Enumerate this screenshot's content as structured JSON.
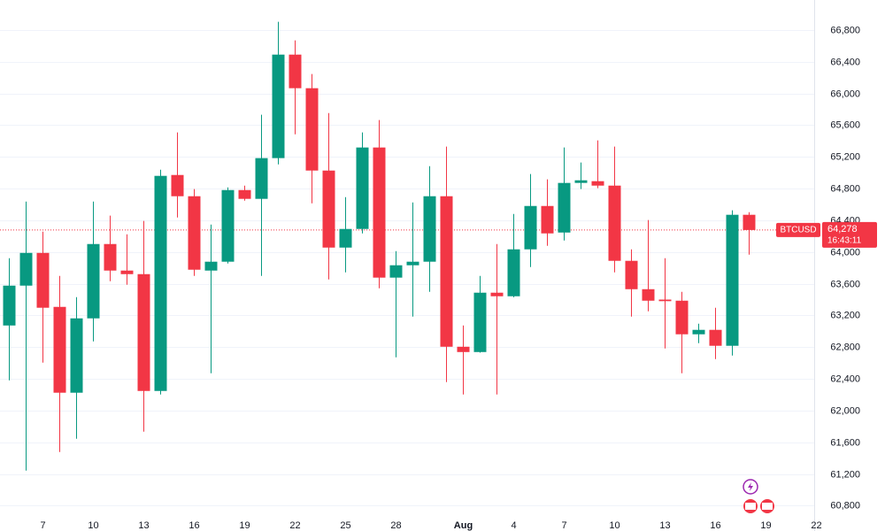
{
  "chart_data": {
    "type": "candlestick",
    "symbol": "BTCUSD",
    "last_value_label": "64,278",
    "countdown": "16:43:11",
    "categories": [
      null,
      null,
      "7",
      null,
      null,
      "10",
      null,
      null,
      "13",
      null,
      null,
      "16",
      null,
      null,
      "19",
      null,
      null,
      "22",
      null,
      null,
      "25",
      null,
      null,
      "28",
      null,
      null,
      null,
      "Aug",
      null,
      null,
      "4",
      null,
      null,
      "7",
      null,
      null,
      "10",
      null,
      null,
      "13",
      null,
      null,
      "16",
      null,
      null,
      "19",
      null,
      null,
      "22"
    ],
    "open": [
      63073,
      63576,
      63989,
      63308,
      62225,
      63163,
      64101,
      63766,
      63721,
      62247,
      64972,
      64704,
      63766,
      63878,
      64782,
      64671,
      65185,
      66491,
      66067,
      65028,
      64056,
      64291,
      65319,
      63677,
      63833,
      63878,
      64704,
      62805,
      62738,
      63487,
      63442,
      64034,
      64581,
      64246,
      64872,
      64894,
      64838,
      63889,
      63531,
      63400,
      63386,
      62962,
      63018,
      62817,
      64470,
      null,
      null,
      null,
      null
    ],
    "high": [
      63922,
      64637,
      64257,
      63699,
      63431,
      64637,
      64459,
      64224,
      64392,
      65039,
      65509,
      64794,
      64347,
      64816,
      64838,
      65732,
      66905,
      66670,
      66246,
      65754,
      64693,
      65509,
      65665,
      64012,
      64626,
      65084,
      65330,
      63073,
      63699,
      64101,
      64481,
      64984,
      64917,
      65319,
      65129,
      65408,
      65330,
      64034,
      64403,
      63922,
      63498,
      63096,
      63297,
      64526,
      64503,
      null,
      null,
      null,
      null
    ],
    "low": [
      62381,
      61242,
      62604,
      61476,
      61644,
      62872,
      63632,
      63587,
      61733,
      62202,
      64436,
      63699,
      62470,
      63855,
      64648,
      63699,
      65106,
      65486,
      64615,
      63654,
      63744,
      64235,
      63543,
      62671,
      63185,
      63498,
      62359,
      62202,
      62730,
      62202,
      63430,
      63811,
      64079,
      64146,
      64794,
      64805,
      63744,
      63185,
      63252,
      62783,
      62470,
      62850,
      62649,
      62694,
      63967,
      null,
      null,
      null,
      null
    ],
    "close": [
      63576,
      63989,
      63297,
      62225,
      63163,
      64101,
      63766,
      63721,
      62247,
      64961,
      64704,
      63777,
      63878,
      64782,
      64671,
      65185,
      66491,
      66067,
      65028,
      64056,
      64291,
      65319,
      63677,
      63833,
      63878,
      64704,
      62805,
      62738,
      63487,
      63442,
      64034,
      64581,
      64235,
      64872,
      64905,
      64838,
      63889,
      63531,
      63386,
      63380,
      62962,
      63018,
      62817,
      64470,
      64278,
      null,
      null,
      null,
      null
    ],
    "up_color": "#089981",
    "down_color": "#f23645",
    "ylim": [
      60480,
      67180
    ],
    "yticks": [
      {
        "value": 60800,
        "label": "60,800"
      },
      {
        "value": 61200,
        "label": "61,200"
      },
      {
        "value": 61600,
        "label": "61,600"
      },
      {
        "value": 62000,
        "label": "62,000"
      },
      {
        "value": 62400,
        "label": "62,400"
      },
      {
        "value": 62800,
        "label": "62,800"
      },
      {
        "value": 63200,
        "label": "63,200"
      },
      {
        "value": 63600,
        "label": "63,600"
      },
      {
        "value": 64000,
        "label": "64,000"
      },
      {
        "value": 64400,
        "label": "64,400"
      },
      {
        "value": 64800,
        "label": "64,800"
      },
      {
        "value": 65200,
        "label": "65,200"
      },
      {
        "value": 65600,
        "label": "65,600"
      },
      {
        "value": 66000,
        "label": "66,000"
      },
      {
        "value": 66400,
        "label": "66,400"
      },
      {
        "value": 66800,
        "label": "66,800"
      }
    ],
    "grid": true
  }
}
